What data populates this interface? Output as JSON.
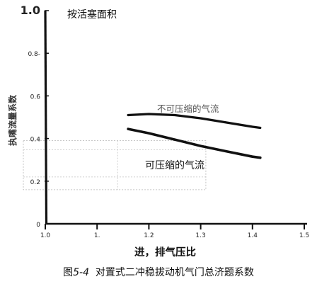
{
  "chart_data": {
    "type": "line",
    "title": "",
    "xlabel": "进，排气压比",
    "ylabel": "执嘴流量系数",
    "x_ticks": [
      "1.0",
      "1.",
      "1.2",
      "1.3",
      "1.4",
      "1.5"
    ],
    "x_tick_values": [
      1.0,
      1.1,
      1.2,
      1.3,
      1.4,
      1.5
    ],
    "y_ticks": [
      "1.0",
      "0.8-",
      "0.6",
      "0.4",
      "0.2",
      "0"
    ],
    "y_tick_values": [
      1.0,
      0.8,
      0.6,
      0.4,
      0.2,
      0.0
    ],
    "xlim": [
      1.0,
      1.5
    ],
    "ylim": [
      0.0,
      1.0
    ],
    "grid": false,
    "annotations": [
      "按活塞面积"
    ],
    "series": [
      {
        "name": "不可压缩的气流",
        "x": [
          1.16,
          1.2,
          1.25,
          1.3,
          1.35,
          1.4,
          1.415
        ],
        "y": [
          0.51,
          0.515,
          0.51,
          0.495,
          0.475,
          0.455,
          0.45
        ]
      },
      {
        "name": "可压缩的气流",
        "x": [
          1.16,
          1.2,
          1.25,
          1.3,
          1.35,
          1.4,
          1.415
        ],
        "y": [
          0.445,
          0.425,
          0.395,
          0.365,
          0.34,
          0.315,
          0.31
        ]
      }
    ],
    "overlay_box": {
      "x": [
        1.0,
        1.31
      ],
      "y": [
        0.16,
        0.39
      ],
      "divider_x": 1.085
    }
  },
  "caption": {
    "prefix": "图",
    "number": "5-4",
    "text": "对置式二冲稳拔动机气门总济题系数"
  }
}
